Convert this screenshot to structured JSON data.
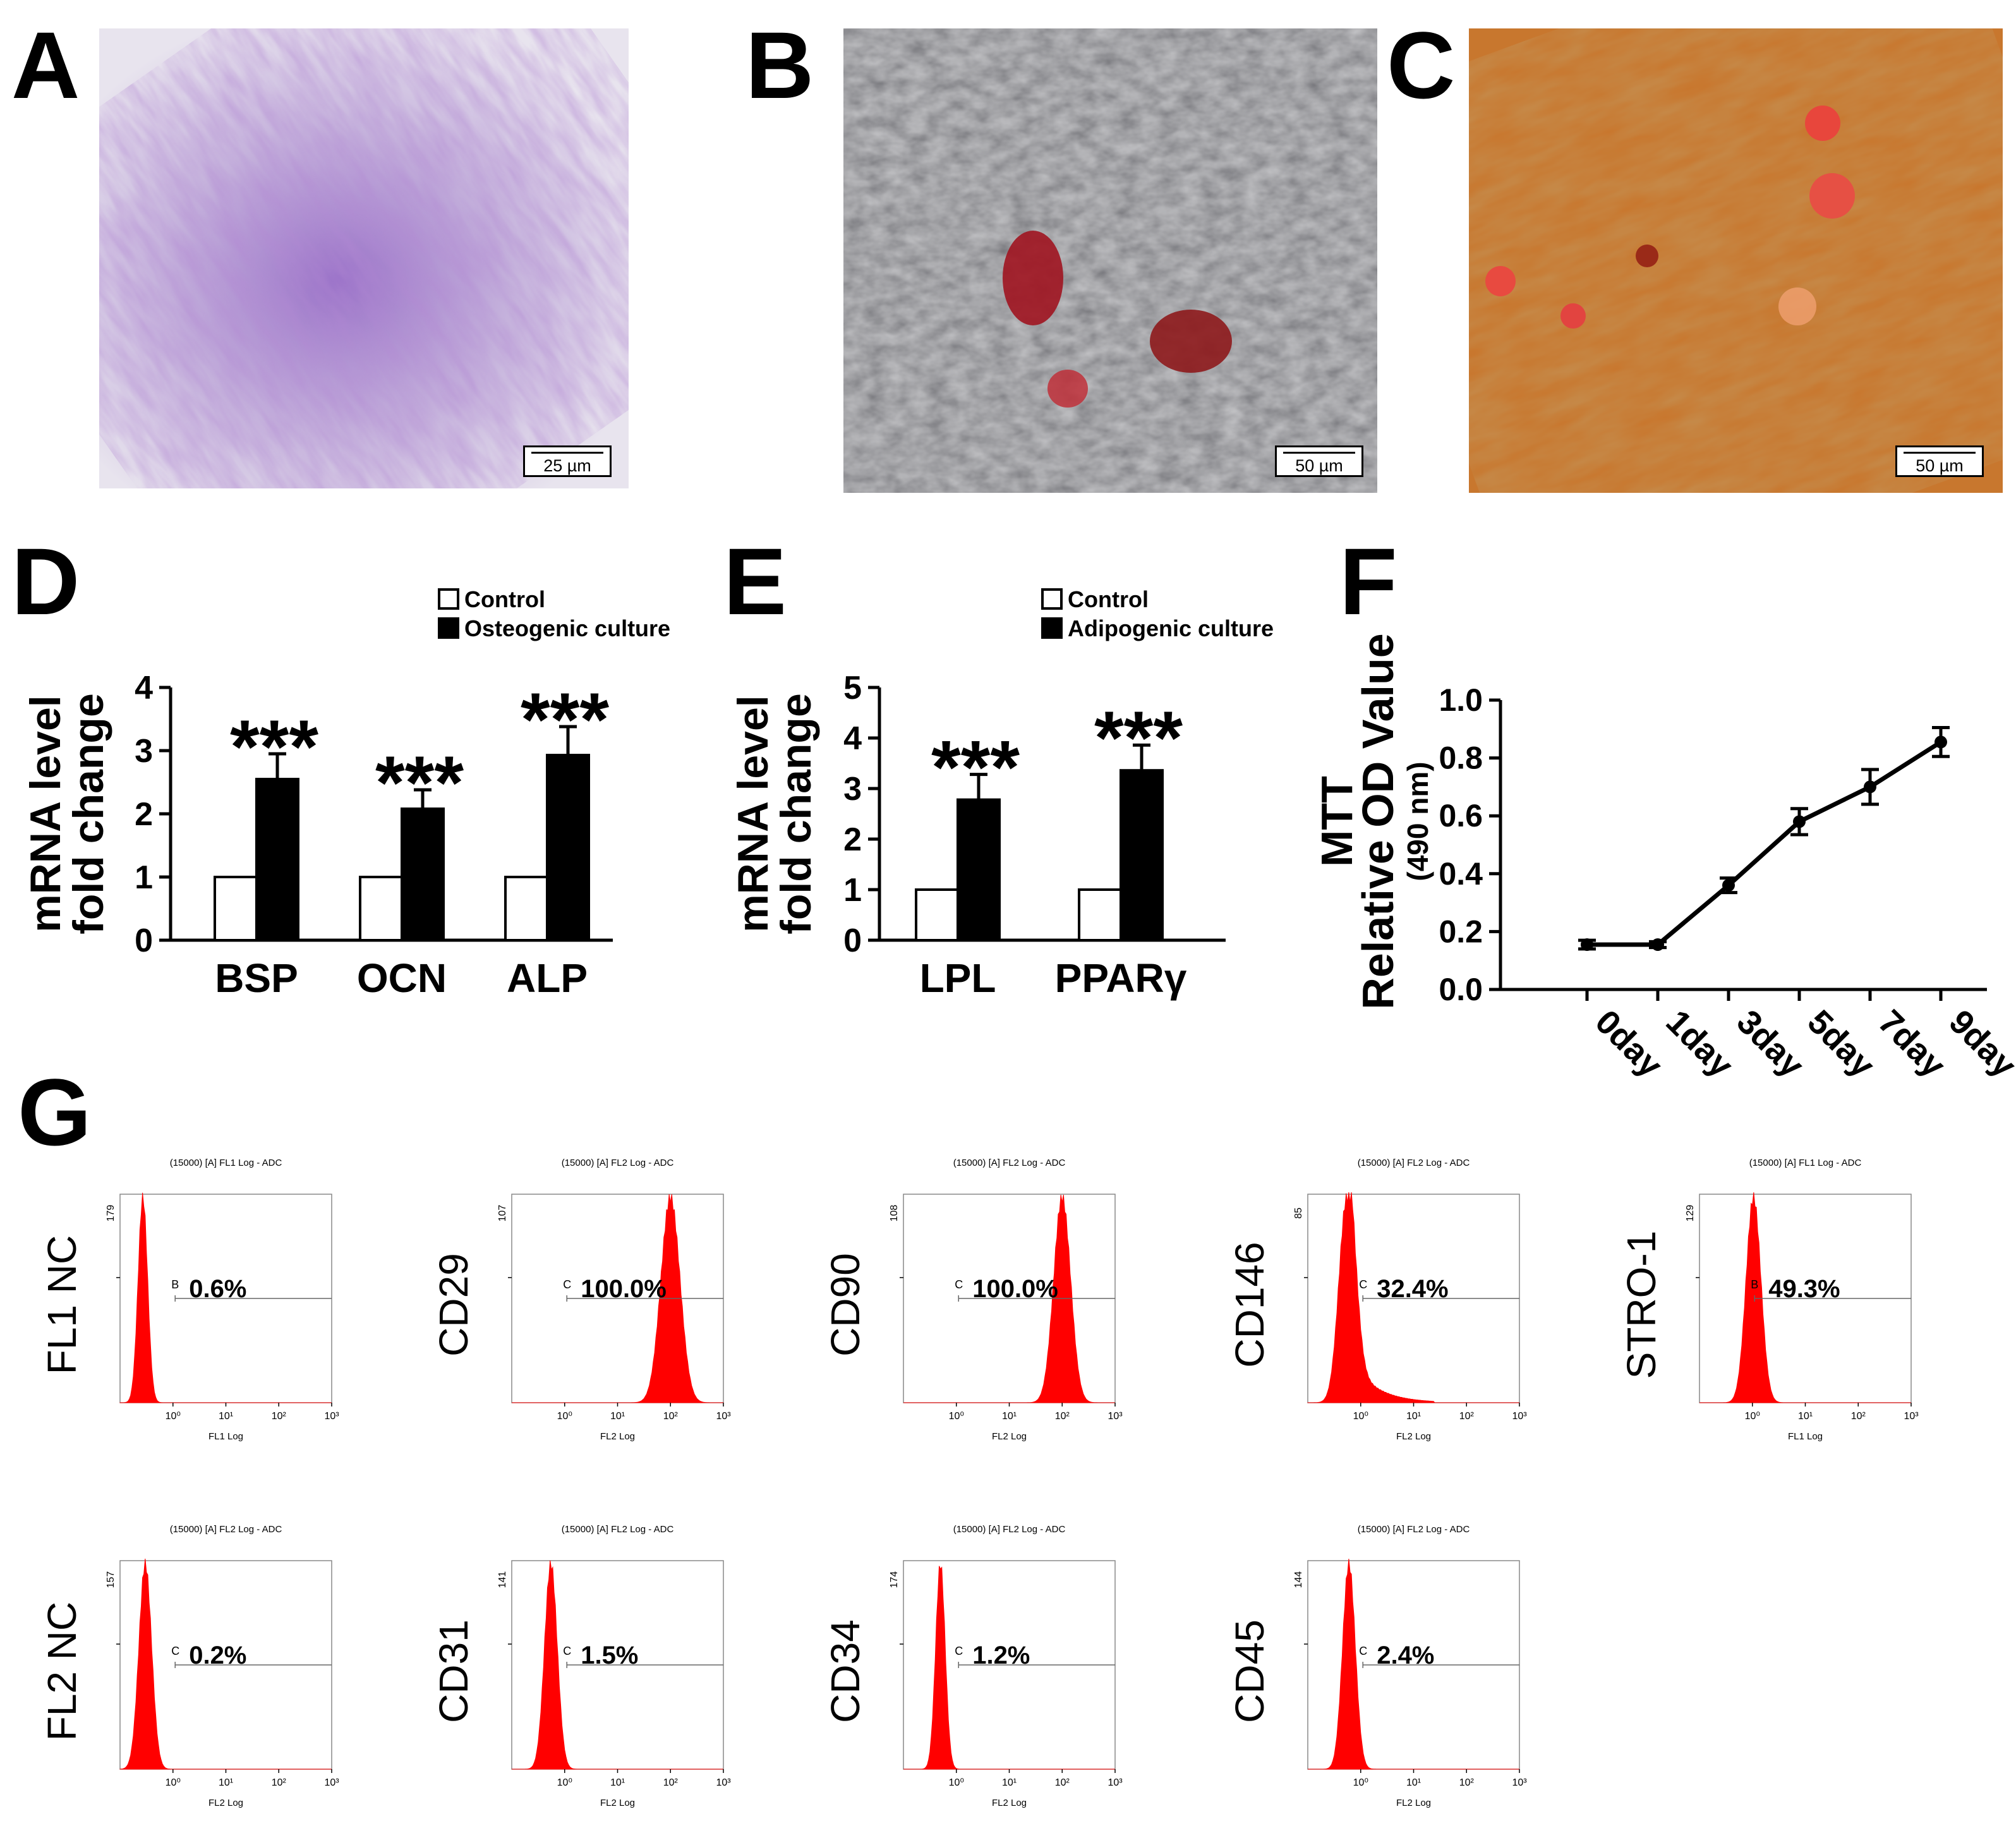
{
  "panels": {
    "A": {
      "label": "A",
      "scale": "25 µm"
    },
    "B": {
      "label": "B",
      "scale": "50 µm"
    },
    "C": {
      "label": "C",
      "scale": "50 µm"
    },
    "D": {
      "label": "D"
    },
    "E": {
      "label": "E"
    },
    "F": {
      "label": "F"
    },
    "G": {
      "label": "G"
    }
  },
  "colors": {
    "purple_stain": "#8a5bb8",
    "red_stain": "#c0202a",
    "orange_bg": "#c8722a",
    "flow_red": "#ff0000"
  },
  "chart_data": [
    {
      "id": "D",
      "type": "bar",
      "categories": [
        "BSP",
        "OCN",
        "ALP"
      ],
      "series": [
        {
          "name": "Control",
          "values": [
            1,
            1,
            1
          ],
          "fill": "white"
        },
        {
          "name": "Osteogenic culture",
          "values": [
            2.55,
            2.08,
            2.93
          ],
          "errors": [
            0.4,
            0.3,
            0.45
          ],
          "fill": "black"
        }
      ],
      "significance": [
        "***",
        "***",
        "***"
      ],
      "ylabel": [
        "mRNA level",
        "fold change"
      ],
      "ylim": [
        0,
        4
      ],
      "yticks": [
        "0",
        "1",
        "2",
        "3",
        "4"
      ]
    },
    {
      "id": "E",
      "type": "bar",
      "categories": [
        "LPL",
        "PPARγ"
      ],
      "series": [
        {
          "name": "Control",
          "values": [
            1,
            1
          ],
          "fill": "white"
        },
        {
          "name": "Adipogenic culture",
          "values": [
            2.78,
            3.36
          ],
          "errors": [
            0.5,
            0.5
          ],
          "fill": "black"
        }
      ],
      "significance": [
        "***",
        "***"
      ],
      "ylabel": [
        "mRNA level",
        "fold change"
      ],
      "ylim": [
        0,
        5
      ],
      "yticks": [
        "0",
        "1",
        "2",
        "3",
        "4",
        "5"
      ]
    },
    {
      "id": "F",
      "type": "line",
      "x": [
        "0day",
        "1day",
        "3day",
        "5day",
        "7day",
        "9day"
      ],
      "values": [
        0.155,
        0.155,
        0.36,
        0.58,
        0.7,
        0.855
      ],
      "errors": [
        0.015,
        0.01,
        0.025,
        0.045,
        0.06,
        0.05
      ],
      "ylabel": [
        "MTT",
        "Relative OD Value",
        "(490 nm)"
      ],
      "ylim": [
        0,
        1.0
      ],
      "yticks": [
        "0.0",
        "0.2",
        "0.4",
        "0.6",
        "0.8",
        "1.0"
      ]
    },
    {
      "id": "G",
      "type": "histogram",
      "histograms": [
        {
          "marker": "FL1 NC",
          "title": "(15000) [A] FL1 Log - ADC",
          "xlabel": "FL1 Log",
          "ymax": "179",
          "gate": "B",
          "percent": "0.6%",
          "peak": 0.27,
          "width": 0.09,
          "tail": 0,
          "gateStart": 1.1
        },
        {
          "marker": "CD29",
          "title": "(15000) [A] FL2 Log - ADC",
          "xlabel": "FL2 Log",
          "ymax": "107",
          "gate": "C",
          "percent": "100.0%",
          "peak": 100,
          "width": 0.18,
          "tail": 0,
          "gateStart": 1.1
        },
        {
          "marker": "CD90",
          "title": "(15000) [A] FL2 Log - ADC",
          "xlabel": "FL2 Log",
          "ymax": "108",
          "gate": "C",
          "percent": "100.0%",
          "peak": 100,
          "width": 0.16,
          "tail": 0,
          "gateStart": 1.1
        },
        {
          "marker": "CD146",
          "title": "(15000) [A] FL2 Log - ADC",
          "xlabel": "FL2 Log",
          "ymax": "85",
          "gate": "C",
          "percent": "32.4%",
          "peak": 0.55,
          "width": 0.15,
          "tail": 1,
          "gateStart": 1.1
        },
        {
          "marker": "STRO-1",
          "title": "(15000) [A] FL1 Log - ADC",
          "xlabel": "FL1 Log",
          "ymax": "129",
          "gate": "B",
          "percent": "49.3%",
          "peak": 1.05,
          "width": 0.14,
          "tail": 0,
          "gateStart": 1.1
        },
        {
          "marker": "FL2 NC",
          "title": "(15000) [A] FL2 Log - ADC",
          "xlabel": "FL2 Log",
          "ymax": "157",
          "gate": "C",
          "percent": "0.2%",
          "peak": 0.3,
          "width": 0.12,
          "tail": 0,
          "gateStart": 1.1
        },
        {
          "marker": "CD31",
          "title": "(15000) [A] FL2 Log - ADC",
          "xlabel": "FL2 Log",
          "ymax": "141",
          "gate": "C",
          "percent": "1.5%",
          "peak": 0.55,
          "width": 0.12,
          "tail": 0,
          "gateStart": 1.1
        },
        {
          "marker": "CD34",
          "title": "(15000) [A] FL2 Log - ADC",
          "xlabel": "FL2 Log",
          "ymax": "174",
          "gate": "C",
          "percent": "1.2%",
          "peak": 0.5,
          "width": 0.09,
          "tail": 0,
          "gateStart": 1.1
        },
        {
          "marker": "CD45",
          "title": "(15000) [A] FL2 Log - ADC",
          "xlabel": "FL2 Log",
          "ymax": "144",
          "gate": "C",
          "percent": "2.4%",
          "peak": 0.6,
          "width": 0.12,
          "tail": 0,
          "gateStart": 1.1
        }
      ],
      "xticks": [
        "10⁰",
        "10¹",
        "10²",
        "10³"
      ]
    }
  ]
}
